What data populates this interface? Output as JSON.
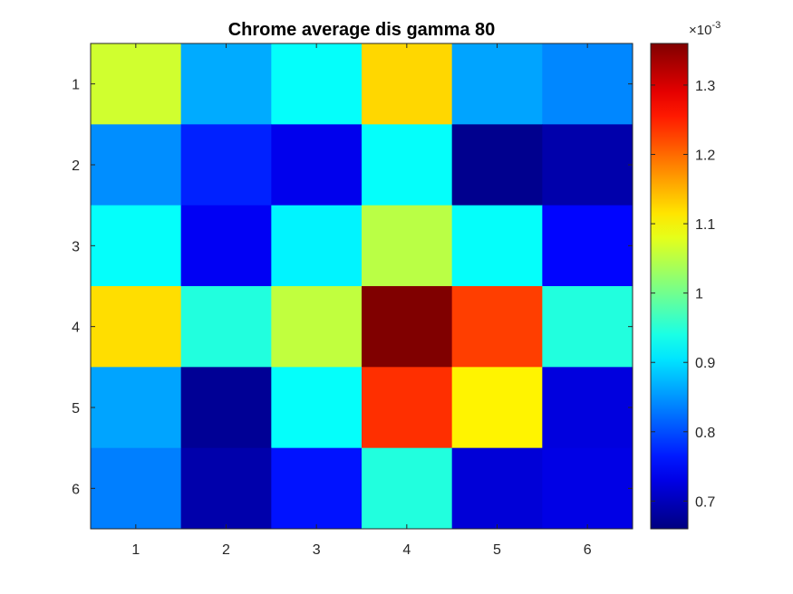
{
  "chart_data": {
    "type": "heatmap",
    "title": "Chrome average dis gamma 80",
    "xlabel": "",
    "ylabel": "",
    "x_categories": [
      "1",
      "2",
      "3",
      "4",
      "5",
      "6"
    ],
    "y_categories": [
      "1",
      "2",
      "3",
      "4",
      "5",
      "6"
    ],
    "values": [
      [
        1.065,
        0.865,
        0.925,
        1.125,
        0.86,
        0.84
      ],
      [
        0.845,
        0.77,
        0.735,
        0.925,
        0.67,
        0.69
      ],
      [
        0.925,
        0.74,
        0.915,
        1.05,
        0.925,
        0.75
      ],
      [
        1.12,
        0.945,
        1.055,
        1.36,
        1.23,
        0.945
      ],
      [
        0.86,
        0.675,
        0.925,
        1.24,
        1.105,
        0.725
      ],
      [
        0.835,
        0.69,
        0.76,
        0.945,
        0.72,
        0.73
      ]
    ],
    "value_units_multiplier": "×10^-3",
    "colormap": "jet",
    "color_limits": [
      0.66,
      1.36
    ],
    "colorbar": {
      "exponent_label": "×10",
      "exponent": "-3",
      "ticks": [
        0.7,
        0.8,
        0.9,
        1,
        1.1,
        1.2,
        1.3
      ],
      "tick_labels": [
        "0.7",
        "0.8",
        "0.9",
        "1",
        "1.1",
        "1.2",
        "1.3"
      ],
      "position": "right"
    },
    "grid": false
  }
}
